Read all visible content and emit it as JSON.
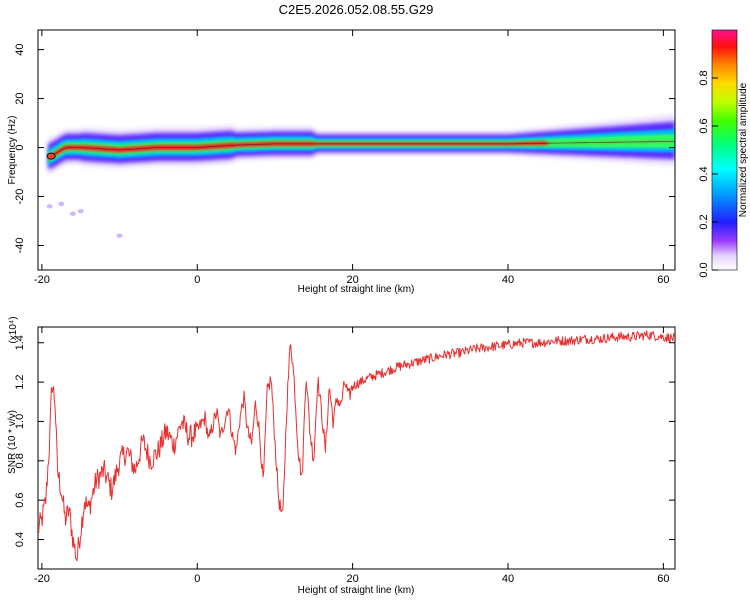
{
  "chart_data": [
    {
      "type": "heatmap",
      "title": "C2E5.2026.052.08.55.G29",
      "xlabel": "Height of straight line (km)",
      "ylabel": "Frequency (Hz)",
      "xlim": [
        -20.5,
        61.5
      ],
      "ylim": [
        -50,
        48
      ],
      "xticks": [
        "-20",
        "0",
        "20",
        "40",
        "60"
      ],
      "yticks": [
        "40",
        "20",
        "0",
        "-20",
        "-40"
      ],
      "colorbar": {
        "label": "Normalized spectral amplitude",
        "range": [
          0.0,
          1.0
        ],
        "ticks": [
          "0.0",
          "0.2",
          "0.4",
          "0.6",
          "0.8"
        ]
      },
      "ridge": {
        "x": [
          -19,
          -17,
          -15,
          -10,
          -5,
          0,
          5,
          10,
          15,
          20,
          30,
          40,
          50,
          61
        ],
        "freq": [
          -4,
          0,
          0,
          -1,
          0,
          0,
          1,
          1.5,
          1.5,
          1.5,
          1.5,
          1.5,
          2,
          2.5
        ]
      },
      "outliers": [
        {
          "x": -19,
          "freq": -24
        },
        {
          "x": -17.5,
          "freq": -23
        },
        {
          "x": -16,
          "freq": -27
        },
        {
          "x": -15,
          "freq": -26
        },
        {
          "x": -10,
          "freq": -36
        }
      ]
    },
    {
      "type": "line",
      "title": "",
      "xlabel": "Height of straight line (km)",
      "ylabel": "SNR (10 * v/v)",
      "scale_note": "(x10⁴)",
      "xlim": [
        -20.5,
        61.5
      ],
      "ylim": [
        0.25,
        1.48
      ],
      "xticks": [
        "-20",
        "0",
        "20",
        "40",
        "60"
      ],
      "yticks": [
        "1.4",
        "1.2",
        "1.0",
        "0.8",
        "0.6",
        "0.4"
      ],
      "series": [
        {
          "name": "SNR",
          "color": "#e8302e",
          "x": [
            -20.5,
            -20,
            -19.5,
            -19,
            -18.7,
            -18.3,
            -18,
            -17.5,
            -17,
            -16.5,
            -16,
            -15.5,
            -15,
            -14.5,
            -14,
            -13,
            -12,
            -11,
            -10,
            -9,
            -8,
            -7,
            -6,
            -5,
            -4,
            -3,
            -2,
            -1,
            0,
            1,
            1.5,
            2,
            2.5,
            3,
            3.5,
            4,
            4.5,
            5,
            5.5,
            6,
            6.5,
            7,
            7.5,
            8,
            8.5,
            9,
            9.5,
            10,
            10.5,
            11,
            11.5,
            12,
            12.5,
            13,
            13.5,
            14,
            14.5,
            15,
            15.5,
            16,
            16.5,
            17,
            17.5,
            18,
            18.5,
            19,
            19.5,
            20,
            22,
            24,
            26,
            28,
            30,
            32,
            34,
            36,
            38,
            40,
            42,
            44,
            46,
            48,
            50,
            52,
            54,
            56,
            58,
            60,
            61.5
          ],
          "values": [
            0.45,
            0.5,
            0.6,
            0.9,
            1.2,
            1.1,
            0.75,
            0.65,
            0.5,
            0.55,
            0.4,
            0.3,
            0.45,
            0.6,
            0.55,
            0.7,
            0.75,
            0.65,
            0.8,
            0.85,
            0.75,
            0.9,
            0.8,
            0.85,
            0.95,
            0.88,
            1.0,
            0.92,
            0.95,
            1.02,
            0.9,
            0.98,
            1.05,
            0.92,
            1.0,
            1.08,
            0.93,
            0.85,
            1.02,
            1.12,
            0.95,
            0.88,
            1.1,
            0.95,
            0.68,
            1.15,
            1.22,
            0.9,
            0.6,
            0.5,
            1.05,
            1.42,
            1.2,
            0.85,
            0.7,
            1.25,
            0.95,
            0.8,
            1.22,
            1.05,
            0.85,
            1.18,
            1.0,
            1.12,
            1.08,
            1.2,
            1.12,
            1.18,
            1.22,
            1.25,
            1.28,
            1.3,
            1.32,
            1.34,
            1.35,
            1.37,
            1.38,
            1.39,
            1.4,
            1.4,
            1.41,
            1.41,
            1.42,
            1.42,
            1.43,
            1.43,
            1.44,
            1.43,
            1.42
          ]
        }
      ]
    }
  ]
}
